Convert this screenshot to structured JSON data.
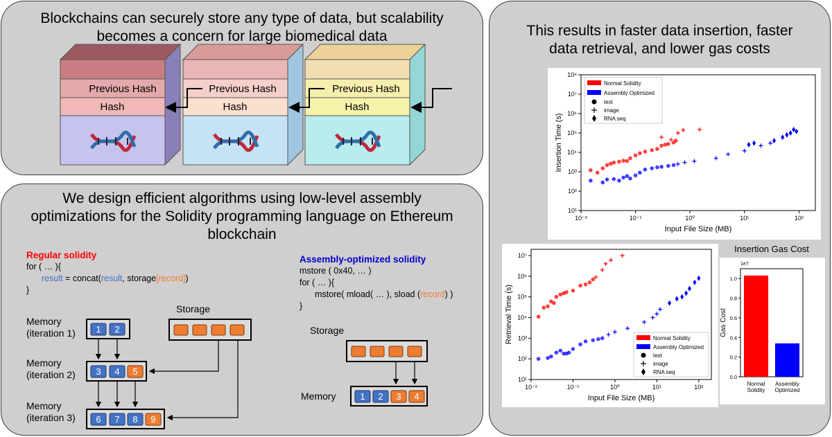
{
  "panel_blockchain": {
    "title_line1": "Blockchains can securely store any type of data, but scalability",
    "title_line2": "becomes a concern for large biomedical data",
    "block_prev_label": "Previous Hash",
    "block_hash_label": "Hash",
    "colors": {
      "block1": {
        "top": "#c97e84",
        "prev": "#e3a9ab",
        "hash": "#f1b8b8",
        "body": "#c6c4ee"
      },
      "block2": {
        "top": "#e9b5b5",
        "prev": "#f5cfca",
        "hash": "#fbe0cf",
        "body": "#c5e3f5"
      },
      "block3": {
        "top": "#f3deb2",
        "prev": "#f6eeae",
        "hash": "#f5f2aa",
        "body": "#b9ecec"
      }
    }
  },
  "panel_algorithms": {
    "title_line1": "We design efficient algorithms using low-level assembly",
    "title_line2": "optimizations for the Solidity programming language on Ethereum",
    "title_line3": "blockchain",
    "regular": {
      "header": "Regular solidity",
      "line1": "for ( … ){",
      "line2_var": "result",
      "line2_mid": " = concat(",
      "line2_arg": "result",
      "line2_sep": ", storage",
      "line2_idx": "[record]",
      "line2_end": ")",
      "line3": "}"
    },
    "assembly": {
      "header": "Assembly-optimized solidity",
      "line1": "mstore ( 0x40, … )",
      "line2": "for ( … ){",
      "line3_pre": "mstore( mload( … ), sload (",
      "line3_arg": "record",
      "line3_end": ") )",
      "line4": "}"
    },
    "storage_label": "Storage",
    "memory_iter1_line1": "Memory",
    "memory_iter1_line2": "(iteration 1)",
    "memory_iter2_line1": "Memory",
    "memory_iter2_line2": "(iteration 2)",
    "memory_iter3_line1": "Memory",
    "memory_iter3_line2": "(iteration 3)",
    "iter1_cells": [
      "1",
      "2"
    ],
    "iter2_cells": [
      "3",
      "4",
      "5"
    ],
    "iter3_cells": [
      "6",
      "7",
      "8",
      "9"
    ],
    "right_storage_label": "Storage",
    "right_memory_label": "Memory",
    "right_memory_cells": [
      "1",
      "2",
      "3",
      "4"
    ],
    "colors": {
      "blue_cell": "#4472c4",
      "orange_cell": "#ed7d31",
      "regular_header": "#ff0000",
      "assembly_header": "#0000cc",
      "var_blue": "#4472c4",
      "var_orange": "#ed7d31"
    }
  },
  "panel_results": {
    "title_line1": "This results in faster data insertion, faster",
    "title_line2": "data retrieval, and lower gas costs",
    "legend": {
      "normal": "Normal Solidity",
      "assembly": "Assembly Optimized",
      "text": "text",
      "image": "image",
      "rna": "RNA seq"
    },
    "colors": {
      "normal": "#ff0000",
      "assembly": "#0000ff"
    }
  },
  "chart_data": [
    {
      "type": "scatter",
      "xlabel": "Input File Size (MB)",
      "ylabel": "Insertion Time (s)",
      "xscale": "log",
      "yscale": "log",
      "xlim": [
        0.01,
        200
      ],
      "ylim": [
        10,
        100000000
      ],
      "x_ticks": [
        "10⁻²",
        "10⁻¹",
        "10⁰",
        "10¹",
        "10²"
      ],
      "y_ticks": [
        "10¹",
        "10²",
        "10³",
        "10⁴",
        "10⁵",
        "10⁶",
        "10⁷",
        "10⁸"
      ],
      "legend_placement": "top-left",
      "series": [
        {
          "name": "Normal Solidity",
          "marker": "text",
          "points": [
            [
              0.015,
              1200
            ],
            [
              0.02,
              900
            ],
            [
              0.025,
              1500
            ],
            [
              0.03,
              2200
            ],
            [
              0.035,
              2600
            ],
            [
              0.04,
              3000
            ],
            [
              0.05,
              3300
            ],
            [
              0.06,
              3700
            ],
            [
              0.07,
              3600
            ],
            [
              0.08,
              5000
            ],
            [
              0.1,
              7000
            ],
            [
              0.12,
              9000
            ],
            [
              0.15,
              11000
            ],
            [
              0.2,
              13000
            ],
            [
              0.25,
              15000
            ],
            [
              0.3,
              22000
            ],
            [
              0.35,
              25000
            ],
            [
              0.4,
              27000
            ],
            [
              0.5,
              32000
            ],
            [
              0.55,
              40000
            ]
          ]
        },
        {
          "name": "Normal Solidity",
          "marker": "image",
          "points": [
            [
              0.45,
              45000
            ],
            [
              0.6,
              100000
            ],
            [
              0.75,
              140000
            ],
            [
              1.5,
              150000
            ],
            [
              0.3,
              60000
            ]
          ]
        },
        {
          "name": "Assembly Optimized",
          "marker": "text",
          "points": [
            [
              0.015,
              350
            ],
            [
              0.025,
              280
            ],
            [
              0.03,
              400
            ],
            [
              0.04,
              420
            ],
            [
              0.05,
              350
            ],
            [
              0.06,
              500
            ],
            [
              0.07,
              600
            ],
            [
              0.08,
              450
            ],
            [
              0.1,
              650
            ],
            [
              0.12,
              900
            ],
            [
              0.15,
              1300
            ],
            [
              0.2,
              1500
            ],
            [
              0.25,
              1700
            ],
            [
              0.3,
              1800
            ],
            [
              0.4,
              2000
            ],
            [
              0.5,
              2200
            ]
          ]
        },
        {
          "name": "Assembly Optimized",
          "marker": "image",
          "points": [
            [
              0.6,
              2500
            ],
            [
              0.8,
              3000
            ],
            [
              1.2,
              3500
            ],
            [
              3,
              5000
            ],
            [
              5,
              8000
            ],
            [
              10,
              12000
            ],
            [
              20,
              22000
            ],
            [
              30,
              30000
            ]
          ]
        },
        {
          "name": "Assembly Optimized",
          "marker": "RNA seq",
          "points": [
            [
              12,
              25000
            ],
            [
              15,
              30000
            ],
            [
              35,
              40000
            ],
            [
              50,
              60000
            ],
            [
              60,
              80000
            ],
            [
              70,
              100000
            ],
            [
              80,
              150000
            ],
            [
              90,
              120000
            ]
          ]
        }
      ]
    },
    {
      "type": "scatter",
      "xlabel": "Input File Size (MB)",
      "ylabel": "Retrieval Time (s)",
      "xscale": "log",
      "yscale": "log",
      "xlim": [
        0.01,
        200
      ],
      "ylim": [
        10,
        20000000
      ],
      "x_ticks": [
        "10⁻²",
        "10⁻¹",
        "10⁰",
        "10¹",
        "10²"
      ],
      "y_ticks": [
        "10¹",
        "10²",
        "10³",
        "10⁴",
        "10⁵",
        "10⁶",
        "10⁷"
      ],
      "legend_placement": "bottom-right",
      "series": [
        {
          "name": "Normal Solidity",
          "marker": "text",
          "points": [
            [
              0.015,
              11000
            ],
            [
              0.02,
              30000
            ],
            [
              0.025,
              35000
            ],
            [
              0.03,
              60000
            ],
            [
              0.035,
              50000
            ],
            [
              0.04,
              100000
            ],
            [
              0.05,
              130000
            ],
            [
              0.06,
              150000
            ],
            [
              0.07,
              170000
            ],
            [
              0.1,
              200000
            ],
            [
              0.15,
              350000
            ],
            [
              0.2,
              400000
            ],
            [
              0.25,
              500000
            ],
            [
              0.3,
              700000
            ]
          ]
        },
        {
          "name": "Normal Solidity",
          "marker": "image",
          "points": [
            [
              0.35,
              900000
            ],
            [
              0.5,
              2000000
            ],
            [
              0.6,
              4000000
            ],
            [
              0.8,
              6000000
            ],
            [
              1.5,
              10000000
            ]
          ]
        },
        {
          "name": "Assembly Optimized",
          "marker": "text",
          "points": [
            [
              0.015,
              100
            ],
            [
              0.025,
              110
            ],
            [
              0.03,
              130
            ],
            [
              0.04,
              200
            ],
            [
              0.05,
              250
            ],
            [
              0.06,
              180
            ],
            [
              0.07,
              180
            ],
            [
              0.08,
              200
            ],
            [
              0.1,
              300
            ],
            [
              0.15,
              500
            ],
            [
              0.2,
              700
            ],
            [
              0.3,
              800
            ],
            [
              0.4,
              900
            ],
            [
              0.5,
              1000
            ]
          ]
        },
        {
          "name": "Assembly Optimized",
          "marker": "image",
          "points": [
            [
              0.7,
              1500
            ],
            [
              1,
              2000
            ],
            [
              2,
              3000
            ],
            [
              5,
              6000
            ],
            [
              8,
              10000
            ],
            [
              10,
              15000
            ],
            [
              12,
              25000
            ]
          ]
        },
        {
          "name": "Assembly Optimized",
          "marker": "RNA seq",
          "points": [
            [
              20,
              50000
            ],
            [
              30,
              80000
            ],
            [
              40,
              100000
            ],
            [
              50,
              150000
            ],
            [
              60,
              250000
            ],
            [
              80,
              500000
            ],
            [
              100,
              800000
            ]
          ]
        }
      ]
    },
    {
      "type": "bar",
      "title": "Insertion Gas Cost",
      "ylabel": "Gas Cost",
      "scale_label": "1e7",
      "categories": [
        "Normal\nSolidity",
        "Assembly\nOptimized"
      ],
      "values": [
        1.03,
        0.34
      ],
      "ylim": [
        0,
        1.1
      ],
      "y_ticks": [
        "0.0",
        "0.2",
        "0.4",
        "0.6",
        "0.8",
        "1.0"
      ],
      "colors": [
        "#ff0000",
        "#0000ff"
      ]
    }
  ]
}
